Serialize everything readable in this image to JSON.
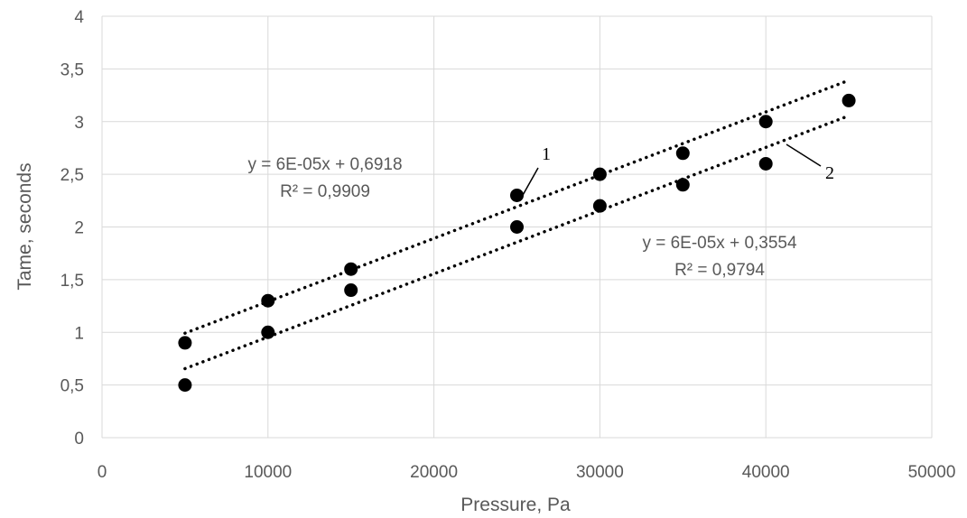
{
  "chart_data": {
    "type": "scatter",
    "xlabel": "Pressure, Pa",
    "ylabel": "Tame, seconds",
    "xlim": [
      0,
      50000
    ],
    "ylim": [
      0,
      4
    ],
    "x_ticks": [
      "0",
      "10000",
      "20000",
      "30000",
      "40000",
      "50000"
    ],
    "y_ticks": [
      "0",
      "0,5",
      "1",
      "1,5",
      "2",
      "2,5",
      "3",
      "3,5",
      "4"
    ],
    "grid": true,
    "series": [
      {
        "name": "1",
        "x": [
          5000,
          10000,
          15000,
          25000,
          30000,
          35000,
          40000,
          45000
        ],
        "y": [
          0.9,
          1.3,
          1.6,
          2.3,
          2.5,
          2.7,
          3.0,
          3.2
        ],
        "trendline": {
          "type": "linear",
          "slope": 6e-05,
          "intercept": 0.6918,
          "x_range": [
            5000,
            45000
          ],
          "equation": "y = 6E-05x + 0,6918",
          "r2": "R² = 0,9909"
        }
      },
      {
        "name": "2",
        "x": [
          5000,
          10000,
          15000,
          25000,
          30000,
          35000,
          40000
        ],
        "y": [
          0.5,
          1.0,
          1.4,
          2.0,
          2.2,
          2.4,
          2.6
        ],
        "trendline": {
          "type": "linear",
          "slope": 6e-05,
          "intercept": 0.3554,
          "x_range": [
            5000,
            45000
          ],
          "equation": "y = 6E-05x + 0,3554",
          "r2": "R² = 0,9794"
        }
      }
    ],
    "colors": {
      "points": "#000000",
      "grid": "#d9d9d9",
      "text": "#595959"
    }
  }
}
